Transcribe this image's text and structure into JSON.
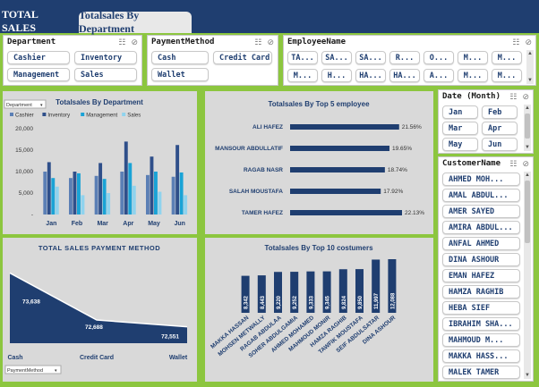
{
  "tabs": [
    "TOTAL SALES",
    "Totalsales By Department"
  ],
  "colors": {
    "navy": "#1f3e70",
    "green": "#8cc63f",
    "panel": "#d9d9d9"
  },
  "slicers": {
    "department": {
      "title": "Department",
      "items": [
        "Cashier",
        "Inventory",
        "Management",
        "Sales"
      ]
    },
    "payment": {
      "title": "PaymentMethod",
      "items": [
        "Cash",
        "Credit Card",
        "Wallet"
      ]
    },
    "employee": {
      "title": "EmployeeName",
      "items": [
        "TA...",
        "SA...",
        "SA...",
        "R...",
        "O...",
        "M...",
        "M...",
        "M...",
        "H...",
        "HA...",
        "HA...",
        "A...",
        "M...",
        "M..."
      ]
    },
    "date": {
      "title": "Date (Month)",
      "items": [
        "Jan",
        "Feb",
        "Mar",
        "Apr",
        "May",
        "Jun"
      ]
    },
    "customer": {
      "title": "CustomerName",
      "items": [
        "AHMED MOH...",
        "AMAL ABDUL...",
        "AMER SAYED",
        "AMIRA ABDUL...",
        "ANFAL AHMED",
        "DINA ASHOUR",
        "EMAN HAFEZ",
        "HAMZA RAGHIB",
        "HEBA SIEF",
        "IBRAHIM SHA...",
        "MAHMOUD M...",
        "MAKKA HASS...",
        "MALEK TAMER"
      ]
    }
  },
  "chart_data": [
    {
      "type": "bar",
      "title": "Totalsales By Department",
      "filter": "Department",
      "categories": [
        "Jan",
        "Feb",
        "Mar",
        "Apr",
        "May",
        "Jun"
      ],
      "series": [
        {
          "name": "Cashier",
          "color": "#5b7fb5",
          "values": [
            10000,
            8500,
            9000,
            10000,
            9200,
            8800
          ]
        },
        {
          "name": "Inventory",
          "color": "#2f4f8a",
          "values": [
            12200,
            10000,
            12000,
            17000,
            13500,
            16200
          ]
        },
        {
          "name": "Management",
          "color": "#1aa3d6",
          "values": [
            8500,
            9600,
            8300,
            12000,
            10000,
            9800
          ]
        },
        {
          "name": "Sales",
          "color": "#8fd3ee",
          "values": [
            6500,
            4500,
            5000,
            6700,
            5300,
            4500
          ]
        }
      ],
      "yticks": [
        "20,000",
        "15,000",
        "10,000",
        "5,000",
        "-"
      ],
      "ylim": [
        0,
        20000
      ]
    },
    {
      "type": "bar",
      "title": "Totalsales By Top 5 employee",
      "categories": [
        "ALI HAFEZ",
        "MANSOUR ABDULLATIF",
        "RAGAB NASR",
        "SALAH MOUSTAFA",
        "TAMER HAFEZ"
      ],
      "values": [
        21.56,
        19.65,
        18.74,
        17.92,
        22.13
      ],
      "labels": [
        "21.56%",
        "19.65%",
        "18.74%",
        "17.92%",
        "22.13%"
      ],
      "xlim": [
        0,
        22.13
      ]
    },
    {
      "type": "area",
      "title": "TOTAL SALES PAYMENT METHOD",
      "filter": "PaymentMethod",
      "categories": [
        "Cash",
        "Credit Card",
        "Wallet"
      ],
      "values": [
        73638,
        72688,
        72551
      ],
      "labels": [
        "73,638",
        "72,688",
        "72,551"
      ]
    },
    {
      "type": "bar",
      "title": "Totalsales By Top 10 costumers",
      "categories": [
        "MAKKA HASSAN",
        "MOHSEN METWALLY",
        "RAGAB ABDULAA",
        "SOHER ABDULGAMIA",
        "AHMED MOHAMED",
        "MAHMOUD MONIR",
        "HAMZA RAGHIB",
        "TAWFIK MOUSTAFA",
        "SEIF ABDULSATAR",
        "DINA ASHOUR"
      ],
      "values": [
        8342,
        8443,
        9220,
        9252,
        9333,
        9345,
        9824,
        9850,
        11997,
        12088
      ],
      "labels": [
        "8,342",
        "8,443",
        "9,220",
        "9,252",
        "9,333",
        "9,345",
        "9,824",
        "9,850",
        "11,997",
        "12,088"
      ]
    }
  ]
}
